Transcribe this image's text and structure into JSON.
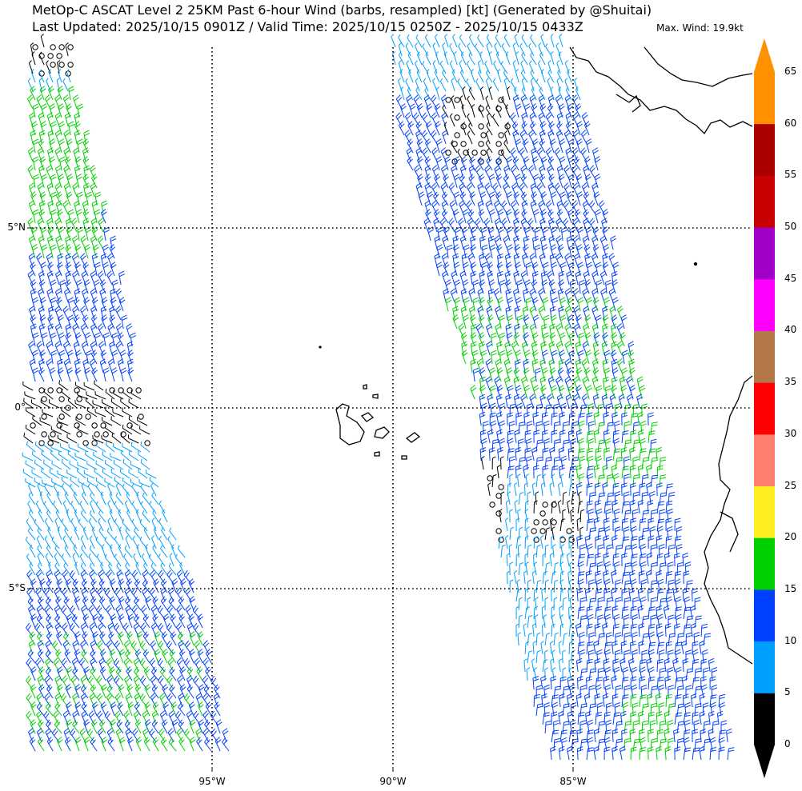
{
  "header": {
    "title": "MetOp-C ASCAT Level 2 25KM Past 6-hour Wind (barbs, resampled) [kt] (Generated by @Shuitai)",
    "subtitle": "Last Updated: 2025/10/15 0901Z / Valid Time: 2025/10/15 0250Z - 2025/10/15 0433Z",
    "max_wind": "Max. Wind: 19.9kt"
  },
  "map": {
    "lat_labels": [
      "5°N",
      "0°",
      "5°S"
    ],
    "lon_labels": [
      "95°W",
      "90°W",
      "85°W"
    ],
    "gridlines": "dotted",
    "region": "Eastern Equatorial Pacific (Galápagos, Central America coast)"
  },
  "colorbar": {
    "unit": "kt",
    "ticks": [
      "65",
      "60",
      "55",
      "50",
      "45",
      "40",
      "35",
      "30",
      "25",
      "20",
      "15",
      "10",
      "5",
      "0"
    ],
    "segments": [
      {
        "min": 0,
        "max": 5,
        "color": "#000000"
      },
      {
        "min": 5,
        "max": 10,
        "color": "#00a0ff"
      },
      {
        "min": 10,
        "max": 15,
        "color": "#0040ff"
      },
      {
        "min": 15,
        "max": 20,
        "color": "#00d000"
      },
      {
        "min": 20,
        "max": 25,
        "color": "#ffee20"
      },
      {
        "min": 25,
        "max": 30,
        "color": "#ff8070"
      },
      {
        "min": 30,
        "max": 35,
        "color": "#ff0000"
      },
      {
        "min": 35,
        "max": 40,
        "color": "#b47848"
      },
      {
        "min": 40,
        "max": 45,
        "color": "#ff00ff"
      },
      {
        "min": 45,
        "max": 50,
        "color": "#a000c8"
      },
      {
        "min": 50,
        "max": 55,
        "color": "#c80000"
      },
      {
        "min": 55,
        "max": 60,
        "color": "#aa0000"
      },
      {
        "min": 60,
        "max": 65,
        "color": "#ff9000"
      }
    ]
  }
}
